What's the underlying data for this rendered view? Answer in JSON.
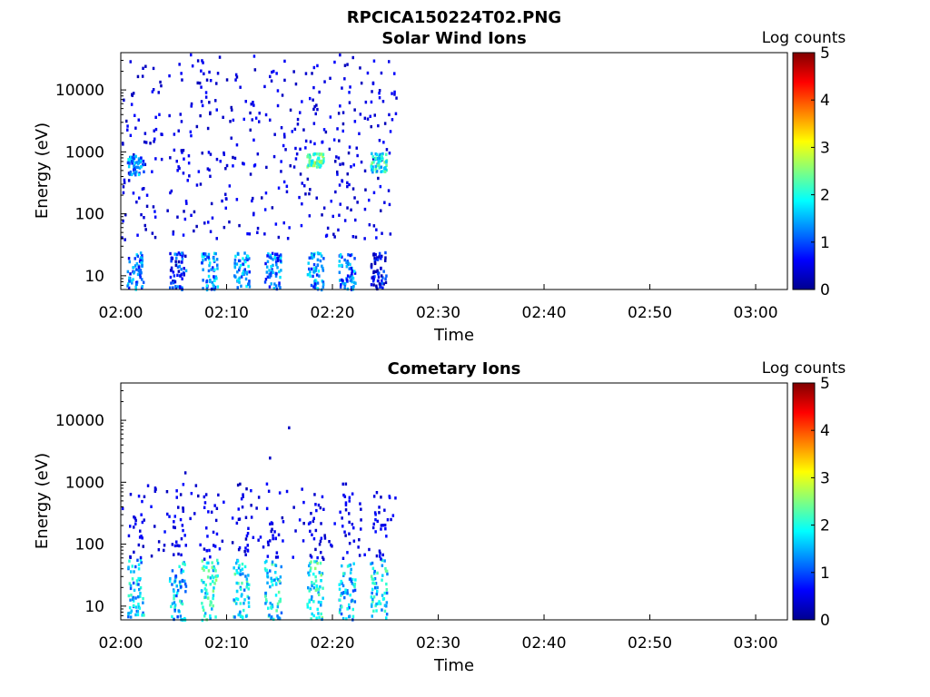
{
  "figure": {
    "title": "RPCICA150224T02.PNG"
  },
  "colorscale": {
    "name": "jet",
    "stops": [
      "#00008f",
      "#0000ff",
      "#0080ff",
      "#00ffff",
      "#80ff80",
      "#ffff00",
      "#ff8000",
      "#ff0000",
      "#800000"
    ]
  },
  "chart_data": [
    {
      "type": "heatmap",
      "title": "Solar Wind Ions",
      "xlabel": "Time",
      "ylabel": "Energy (eV)",
      "x_range": [
        "02:00",
        "03:03"
      ],
      "x_ticks": [
        "02:00",
        "02:10",
        "02:20",
        "02:30",
        "02:40",
        "02:50",
        "03:00"
      ],
      "y_scale": "log",
      "y_range": [
        6,
        40000
      ],
      "y_ticks": [
        "10",
        "100",
        "1000",
        "10000"
      ],
      "data_extent_time": [
        "02:00",
        "02:26"
      ],
      "colorbar": {
        "label": "Log counts",
        "range": [
          0,
          5
        ],
        "ticks": [
          "0",
          "1",
          "2",
          "3",
          "4",
          "5"
        ]
      },
      "features": [
        {
          "time": "02:01",
          "energy_eV": [
            450,
            900
          ],
          "log_counts": 2.0
        },
        {
          "time": "02:18",
          "energy_eV": [
            600,
            1000
          ],
          "log_counts": 2.8
        },
        {
          "time": "02:24",
          "energy_eV": [
            500,
            1000
          ],
          "log_counts": 2.5
        },
        {
          "time": "02:01",
          "energy_eV": [
            6,
            25
          ],
          "log_counts": 1.8
        },
        {
          "time": "02:05",
          "energy_eV": [
            6,
            25
          ],
          "log_counts": 1.5
        },
        {
          "time": "02:08",
          "energy_eV": [
            6,
            25
          ],
          "log_counts": 2.0
        },
        {
          "time": "02:11",
          "energy_eV": [
            6,
            25
          ],
          "log_counts": 2.0
        },
        {
          "time": "02:14",
          "energy_eV": [
            6,
            25
          ],
          "log_counts": 1.8
        },
        {
          "time": "02:18",
          "energy_eV": [
            6,
            25
          ],
          "log_counts": 2.0
        },
        {
          "time": "02:21",
          "energy_eV": [
            6,
            25
          ],
          "log_counts": 1.8
        },
        {
          "time": "02:24",
          "energy_eV": [
            6,
            25
          ],
          "log_counts": 1.2
        }
      ]
    },
    {
      "type": "heatmap",
      "title": "Cometary Ions",
      "xlabel": "Time",
      "ylabel": "Energy (eV)",
      "x_range": [
        "02:00",
        "03:03"
      ],
      "x_ticks": [
        "02:00",
        "02:10",
        "02:20",
        "02:30",
        "02:40",
        "02:50",
        "03:00"
      ],
      "y_scale": "log",
      "y_range": [
        6,
        40000
      ],
      "y_ticks": [
        "10",
        "100",
        "1000",
        "10000"
      ],
      "data_extent_time": [
        "02:00",
        "02:26"
      ],
      "colorbar": {
        "label": "Log counts",
        "range": [
          0,
          5
        ],
        "ticks": [
          "0",
          "1",
          "2",
          "3",
          "4",
          "5"
        ]
      },
      "features": [
        {
          "time": "02:01",
          "energy_eV": [
            6,
            60
          ],
          "log_counts": 2.2
        },
        {
          "time": "02:05",
          "energy_eV": [
            6,
            60
          ],
          "log_counts": 2.2
        },
        {
          "time": "02:08",
          "energy_eV": [
            6,
            60
          ],
          "log_counts": 2.6
        },
        {
          "time": "02:11",
          "energy_eV": [
            6,
            60
          ],
          "log_counts": 2.4
        },
        {
          "time": "02:14",
          "energy_eV": [
            6,
            60
          ],
          "log_counts": 2.4
        },
        {
          "time": "02:18",
          "energy_eV": [
            6,
            60
          ],
          "log_counts": 2.6
        },
        {
          "time": "02:21",
          "energy_eV": [
            6,
            60
          ],
          "log_counts": 2.2
        },
        {
          "time": "02:24",
          "energy_eV": [
            6,
            60
          ],
          "log_counts": 2.4
        }
      ]
    }
  ]
}
